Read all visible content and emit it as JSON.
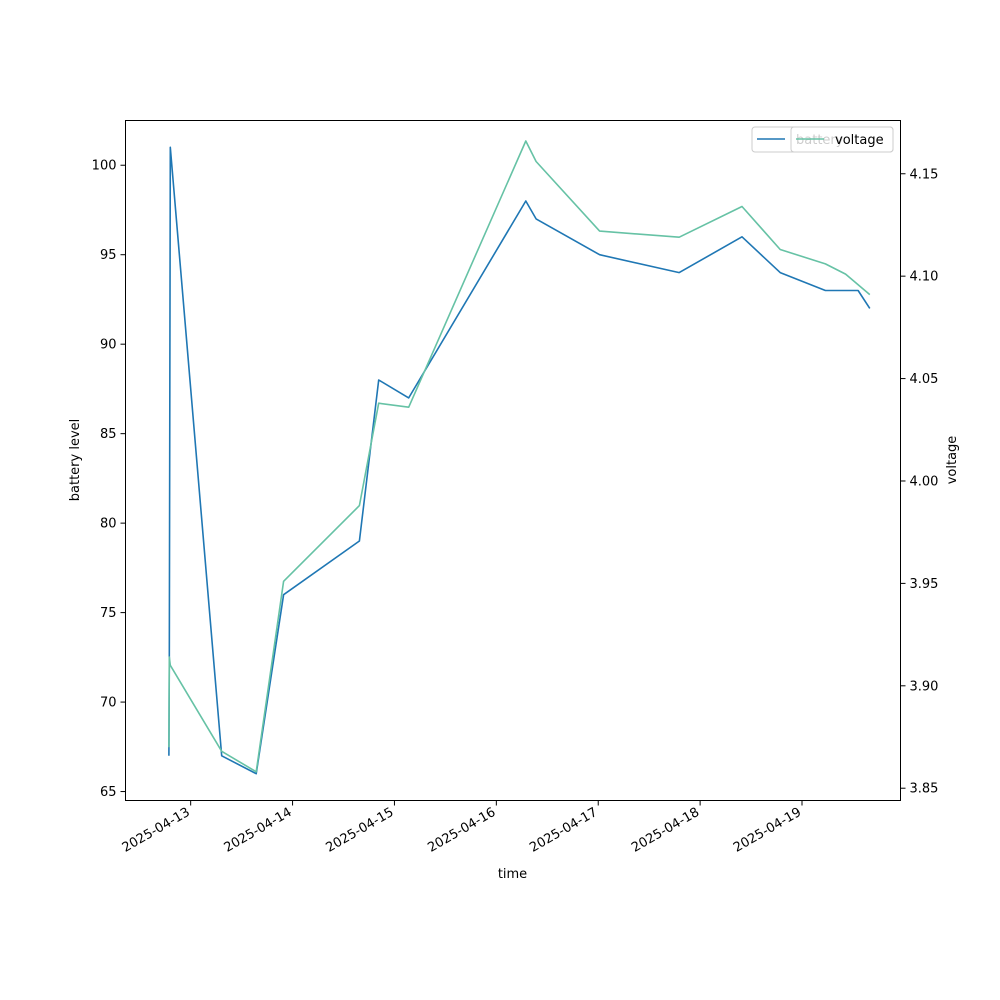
{
  "chart_data": {
    "type": "line",
    "xlabel": "time",
    "ylabel_left": "battery level",
    "ylabel_right": "voltage",
    "x_ticks": [
      "2025-04-13",
      "2025-04-14",
      "2025-04-15",
      "2025-04-16",
      "2025-04-17",
      "2025-04-18",
      "2025-04-19"
    ],
    "xlim": [
      "2025-04-12T08:39",
      "2025-04-19T23:12"
    ],
    "y_left_ticks": [
      65,
      70,
      75,
      80,
      85,
      90,
      95,
      100
    ],
    "y_left_lim": [
      64.5,
      102.5
    ],
    "y_right_ticks": [
      3.85,
      3.9,
      3.95,
      4.0,
      4.05,
      4.1,
      4.15
    ],
    "y_right_lim": [
      3.844,
      4.176
    ],
    "grid": false,
    "legend_position": "top-right",
    "series": [
      {
        "name": "battery",
        "axis": "left",
        "color": "#1f77b4",
        "points": [
          {
            "x": "2025-04-12T18:53",
            "y": 67
          },
          {
            "x": "2025-04-12T18:58",
            "y": 72
          },
          {
            "x": "2025-04-12T19:12",
            "y": 101
          },
          {
            "x": "2025-04-13T07:19",
            "y": 67
          },
          {
            "x": "2025-04-13T15:26",
            "y": 66
          },
          {
            "x": "2025-04-13T21:53",
            "y": 76
          },
          {
            "x": "2025-04-14T15:45",
            "y": 79
          },
          {
            "x": "2025-04-14T20:17",
            "y": 88
          },
          {
            "x": "2025-04-15T03:21",
            "y": 87
          },
          {
            "x": "2025-04-16T06:56",
            "y": 98
          },
          {
            "x": "2025-04-16T09:22",
            "y": 97
          },
          {
            "x": "2025-04-17T00:19",
            "y": 95
          },
          {
            "x": "2025-04-17T19:05",
            "y": 94
          },
          {
            "x": "2025-04-18T09:52",
            "y": 96
          },
          {
            "x": "2025-04-18T18:52",
            "y": 94
          },
          {
            "x": "2025-04-19T05:30",
            "y": 93
          },
          {
            "x": "2025-04-19T13:13",
            "y": 93
          },
          {
            "x": "2025-04-19T15:58",
            "y": 92
          }
        ]
      },
      {
        "name": "voltage",
        "axis": "right",
        "color": "#66c2a5",
        "points": [
          {
            "x": "2025-04-12T18:53",
            "y": 3.87
          },
          {
            "x": "2025-04-12T18:58",
            "y": 3.914
          },
          {
            "x": "2025-04-12T19:12",
            "y": 3.91
          },
          {
            "x": "2025-04-13T07:19",
            "y": 3.868
          },
          {
            "x": "2025-04-13T15:26",
            "y": 3.858
          },
          {
            "x": "2025-04-13T21:53",
            "y": 3.951
          },
          {
            "x": "2025-04-14T15:45",
            "y": 3.988
          },
          {
            "x": "2025-04-14T20:17",
            "y": 4.038
          },
          {
            "x": "2025-04-15T03:21",
            "y": 4.036
          },
          {
            "x": "2025-04-16T06:56",
            "y": 4.166
          },
          {
            "x": "2025-04-16T09:22",
            "y": 4.156
          },
          {
            "x": "2025-04-17T00:19",
            "y": 4.122
          },
          {
            "x": "2025-04-17T19:05",
            "y": 4.119
          },
          {
            "x": "2025-04-18T09:52",
            "y": 4.134
          },
          {
            "x": "2025-04-18T18:52",
            "y": 4.113
          },
          {
            "x": "2025-04-19T05:30",
            "y": 4.106
          },
          {
            "x": "2025-04-19T10:16",
            "y": 4.101
          },
          {
            "x": "2025-04-19T15:58",
            "y": 4.091
          }
        ]
      }
    ],
    "legends": [
      {
        "position": "top-right",
        "entries": [
          "battery"
        ]
      },
      {
        "position": "top-right",
        "entries": [
          "voltage"
        ]
      }
    ]
  }
}
